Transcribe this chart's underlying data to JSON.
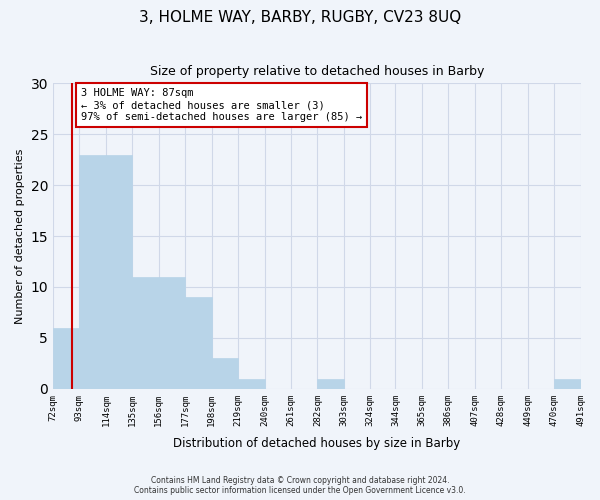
{
  "title": "3, HOLME WAY, BARBY, RUGBY, CV23 8UQ",
  "subtitle": "Size of property relative to detached houses in Barby",
  "xlabel": "Distribution of detached houses by size in Barby",
  "ylabel": "Number of detached properties",
  "bar_edges": [
    72,
    93,
    114,
    135,
    156,
    177,
    198,
    219,
    240,
    261,
    282,
    303,
    324,
    344,
    365,
    386,
    407,
    428,
    449,
    470,
    491
  ],
  "bar_heights": [
    6,
    23,
    23,
    11,
    11,
    9,
    3,
    1,
    0,
    0,
    1,
    0,
    0,
    0,
    0,
    0,
    0,
    0,
    0,
    1
  ],
  "bar_color": "#b8d4e8",
  "bar_edgecolor": "#b8d4e8",
  "ylim": [
    0,
    30
  ],
  "yticks": [
    0,
    5,
    10,
    15,
    20,
    25,
    30
  ],
  "property_line_x": 87,
  "property_line_color": "#cc0000",
  "annotation_line1": "3 HOLME WAY: 87sqm",
  "annotation_line2": "← 3% of detached houses are smaller (3)",
  "annotation_line3": "97% of semi-detached houses are larger (85) →",
  "annotation_box_color": "#ffffff",
  "annotation_box_edgecolor": "#cc0000",
  "grid_color": "#d0d8e8",
  "tick_labels": [
    "72sqm",
    "93sqm",
    "114sqm",
    "135sqm",
    "156sqm",
    "177sqm",
    "198sqm",
    "219sqm",
    "240sqm",
    "261sqm",
    "282sqm",
    "303sqm",
    "324sqm",
    "344sqm",
    "365sqm",
    "386sqm",
    "407sqm",
    "428sqm",
    "449sqm",
    "470sqm",
    "491sqm"
  ],
  "footnote1": "Contains HM Land Registry data © Crown copyright and database right 2024.",
  "footnote2": "Contains public sector information licensed under the Open Government Licence v3.0.",
  "background_color": "#f0f4fa"
}
